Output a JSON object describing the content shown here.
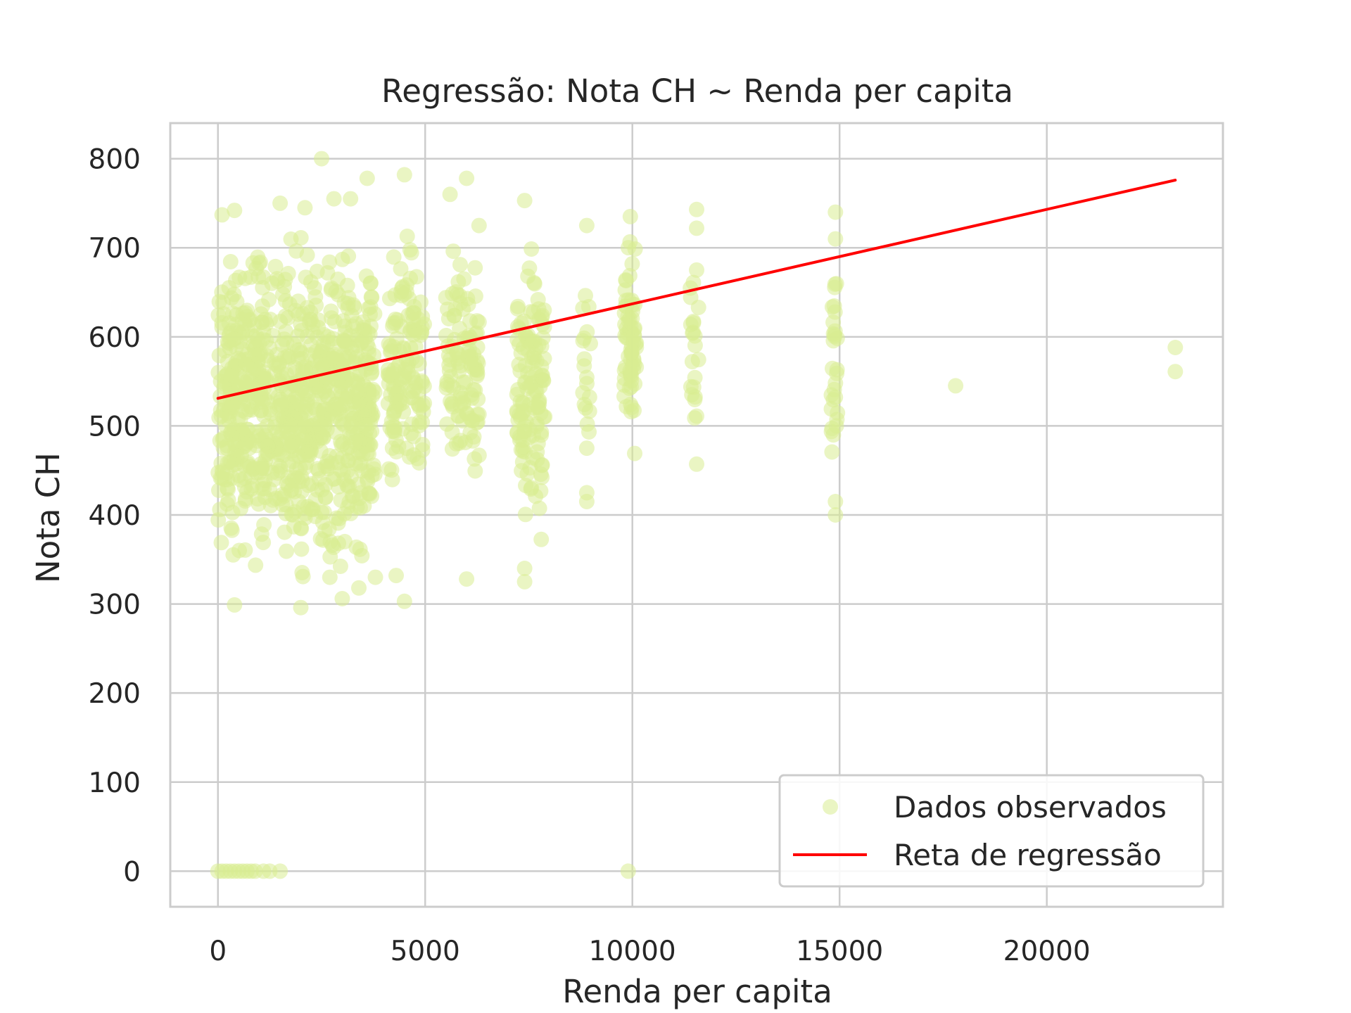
{
  "chart_data": {
    "type": "scatter",
    "title": "Regressão: Nota CH ~ Renda per capita",
    "xlabel": "Renda per capita",
    "ylabel": "Nota CH",
    "xlim": [
      -1150,
      24250
    ],
    "ylim": [
      -40,
      840
    ],
    "xticks": [
      0,
      5000,
      10000,
      15000,
      20000
    ],
    "yticks": [
      0,
      100,
      200,
      300,
      400,
      500,
      600,
      700,
      800
    ],
    "grid": true,
    "legend_position": "lower-right",
    "colors": {
      "points": "#d9ed92",
      "line": "#ff0000",
      "grid": "#cccccc",
      "frame": "#cccccc"
    },
    "series": [
      {
        "name": "Dados observados",
        "kind": "scatter",
        "clusters": [
          {
            "x_min": 0,
            "x_max": 3800,
            "y_min": 300,
            "y_max": 740,
            "count": 900
          },
          {
            "x_min": 4100,
            "x_max": 5000,
            "y_min": 390,
            "y_max": 740,
            "count": 140
          },
          {
            "x_min": 5500,
            "x_max": 6300,
            "y_min": 400,
            "y_max": 745,
            "count": 110
          },
          {
            "x_min": 7200,
            "x_max": 7900,
            "y_min": 325,
            "y_max": 755,
            "count": 130
          },
          {
            "x_min": 8800,
            "x_max": 9000,
            "y_min": 415,
            "y_max": 725,
            "count": 18
          },
          {
            "x_min": 9800,
            "x_max": 10100,
            "y_min": 450,
            "y_max": 735,
            "count": 70
          },
          {
            "x_min": 11400,
            "x_max": 11600,
            "y_min": 455,
            "y_max": 745,
            "count": 20
          },
          {
            "x_min": 14800,
            "x_max": 14950,
            "y_min": 400,
            "y_max": 740,
            "count": 28
          }
        ],
        "points": [
          {
            "x": 2500,
            "y": 800
          },
          {
            "x": 4500,
            "y": 782
          },
          {
            "x": 3600,
            "y": 778
          },
          {
            "x": 6000,
            "y": 778
          },
          {
            "x": 5600,
            "y": 760
          },
          {
            "x": 2800,
            "y": 755
          },
          {
            "x": 3200,
            "y": 755
          },
          {
            "x": 7400,
            "y": 753
          },
          {
            "x": 1500,
            "y": 750
          },
          {
            "x": 2100,
            "y": 745
          },
          {
            "x": 400,
            "y": 742
          },
          {
            "x": 100,
            "y": 737
          },
          {
            "x": 14900,
            "y": 740
          },
          {
            "x": 11550,
            "y": 743
          },
          {
            "x": 11550,
            "y": 722
          },
          {
            "x": 14900,
            "y": 710
          },
          {
            "x": 11550,
            "y": 675
          },
          {
            "x": 8900,
            "y": 725
          },
          {
            "x": 9950,
            "y": 735
          },
          {
            "x": 6300,
            "y": 725
          },
          {
            "x": 23100,
            "y": 588
          },
          {
            "x": 23100,
            "y": 561
          },
          {
            "x": 17800,
            "y": 545
          },
          {
            "x": 6300,
            "y": 467
          },
          {
            "x": 6000,
            "y": 328
          },
          {
            "x": 4500,
            "y": 303
          },
          {
            "x": 2000,
            "y": 296
          },
          {
            "x": 400,
            "y": 299
          },
          {
            "x": 11550,
            "y": 511
          },
          {
            "x": 11550,
            "y": 457
          },
          {
            "x": 14900,
            "y": 415
          },
          {
            "x": 14900,
            "y": 400
          },
          {
            "x": 14900,
            "y": 548
          },
          {
            "x": 8900,
            "y": 475
          },
          {
            "x": 8900,
            "y": 425
          },
          {
            "x": 8900,
            "y": 415
          },
          {
            "x": 7400,
            "y": 325
          },
          {
            "x": 7400,
            "y": 340
          },
          {
            "x": 3000,
            "y": 306
          },
          {
            "x": 2700,
            "y": 330
          },
          {
            "x": 3800,
            "y": 330
          },
          {
            "x": 3400,
            "y": 318
          },
          {
            "x": 4300,
            "y": 332
          },
          {
            "x": 0,
            "y": 0
          },
          {
            "x": 100,
            "y": 0
          },
          {
            "x": 200,
            "y": 0
          },
          {
            "x": 300,
            "y": 0
          },
          {
            "x": 400,
            "y": 0
          },
          {
            "x": 500,
            "y": 0
          },
          {
            "x": 600,
            "y": 0
          },
          {
            "x": 700,
            "y": 0
          },
          {
            "x": 800,
            "y": 0
          },
          {
            "x": 900,
            "y": 0
          },
          {
            "x": 1100,
            "y": 0
          },
          {
            "x": 1250,
            "y": 0
          },
          {
            "x": 1500,
            "y": 0
          },
          {
            "x": 9900,
            "y": 0
          }
        ]
      },
      {
        "name": "Reta de regressão",
        "kind": "line",
        "x": [
          0,
          23100
        ],
        "y": [
          531,
          776
        ]
      }
    ]
  }
}
